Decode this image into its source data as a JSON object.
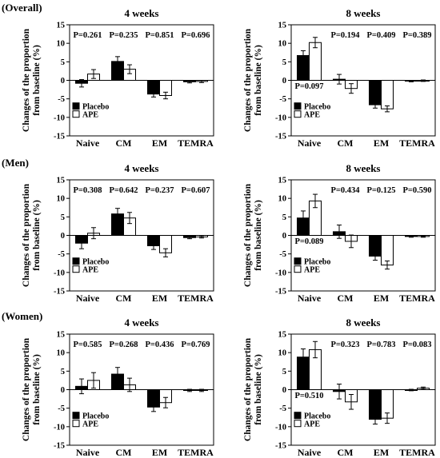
{
  "figure": {
    "legend": {
      "placebo": "Placebo",
      "ape": "APE"
    },
    "colors": {
      "placebo": "#000000",
      "ape": "#ffffff",
      "stroke": "#000000"
    }
  },
  "chart_data": [
    {
      "type": "bar",
      "group": "(Overall)",
      "title": "4 weeks",
      "ylabel": "Changes of the proportion from baseline (%)",
      "ylim": [
        -15,
        15
      ],
      "yticks": [
        -15,
        -10,
        -5,
        0,
        5,
        10,
        15
      ],
      "categories": [
        "Naive",
        "CM",
        "EM",
        "TEMRA"
      ],
      "p_values": [
        "P=0.261",
        "P=0.235",
        "P=0.851",
        "P=0.696"
      ],
      "series": [
        {
          "name": "Placebo",
          "values": [
            -0.8,
            5.1,
            -3.7,
            -0.4
          ],
          "errors": [
            1.0,
            1.3,
            0.8,
            0.3
          ]
        },
        {
          "name": "APE",
          "values": [
            1.7,
            3.0,
            -4.1,
            -0.3
          ],
          "errors": [
            1.2,
            1.2,
            0.9,
            0.3
          ]
        }
      ]
    },
    {
      "type": "bar",
      "group": "(Overall)",
      "title": "8 weeks",
      "ylabel": "Changes of the proportion from baseline (%)",
      "ylim": [
        -15,
        15
      ],
      "yticks": [
        -15,
        -10,
        -5,
        0,
        5,
        10,
        15
      ],
      "categories": [
        "Naive",
        "CM",
        "EM",
        "TEMRA"
      ],
      "p_values": [
        "P=0.097",
        "P=0.194",
        "P=0.409",
        "P=0.389"
      ],
      "series": [
        {
          "name": "Placebo",
          "values": [
            6.7,
            0.3,
            -6.6,
            -0.2
          ],
          "errors": [
            1.3,
            1.3,
            0.9,
            0.2
          ]
        },
        {
          "name": "APE",
          "values": [
            10.2,
            -2.2,
            -7.7,
            -0.1
          ],
          "errors": [
            1.4,
            1.3,
            0.8,
            0.2
          ]
        }
      ]
    },
    {
      "type": "bar",
      "group": "(Men)",
      "title": "4 weeks",
      "ylabel": "Changes of the proportion from baseline (%)",
      "ylim": [
        -15,
        15
      ],
      "yticks": [
        -15,
        -10,
        -5,
        0,
        5,
        10,
        15
      ],
      "categories": [
        "Naive",
        "CM",
        "EM",
        "TEMRA"
      ],
      "p_values": [
        "P=0.308",
        "P=0.642",
        "P=0.237",
        "P=0.607"
      ],
      "series": [
        {
          "name": "Placebo",
          "values": [
            -2.1,
            5.8,
            -2.8,
            -0.6
          ],
          "errors": [
            1.5,
            1.5,
            1.0,
            0.3
          ]
        },
        {
          "name": "APE",
          "values": [
            0.6,
            4.7,
            -4.7,
            -0.4
          ],
          "errors": [
            1.5,
            1.5,
            1.1,
            0.3
          ]
        }
      ]
    },
    {
      "type": "bar",
      "group": "(Men)",
      "title": "8 weeks",
      "ylabel": "Changes of the proportion from baseline (%)",
      "ylim": [
        -15,
        15
      ],
      "yticks": [
        -15,
        -10,
        -5,
        0,
        5,
        10,
        15
      ],
      "categories": [
        "Naive",
        "CM",
        "EM",
        "TEMRA"
      ],
      "p_values": [
        "P=0.089",
        "P=0.434",
        "P=0.125",
        "P=0.590"
      ],
      "series": [
        {
          "name": "Placebo",
          "values": [
            4.7,
            1.0,
            -5.6,
            -0.3
          ],
          "errors": [
            1.9,
            1.8,
            1.1,
            0.2
          ]
        },
        {
          "name": "APE",
          "values": [
            9.3,
            -1.6,
            -8.0,
            -0.3
          ],
          "errors": [
            1.8,
            1.7,
            1.1,
            0.2
          ]
        }
      ]
    },
    {
      "type": "bar",
      "group": "(Women)",
      "title": "4 weeks",
      "ylabel": "Changes of the proportion from baseline (%)",
      "ylim": [
        -15,
        15
      ],
      "yticks": [
        -15,
        -10,
        -5,
        0,
        5,
        10,
        15
      ],
      "categories": [
        "Naive",
        "CM",
        "EM",
        "TEMRA"
      ],
      "p_values": [
        "P=0.585",
        "P=0.268",
        "P=0.436",
        "P=0.769"
      ],
      "series": [
        {
          "name": "Placebo",
          "values": [
            0.9,
            4.2,
            -4.7,
            -0.2
          ],
          "errors": [
            2.0,
            1.8,
            1.2,
            0.3
          ]
        },
        {
          "name": "APE",
          "values": [
            2.5,
            1.3,
            -3.5,
            -0.2
          ],
          "errors": [
            2.1,
            1.8,
            1.4,
            0.3
          ]
        }
      ]
    },
    {
      "type": "bar",
      "group": "(Women)",
      "title": "8 weeks",
      "ylabel": "Changes of the proportion from baseline (%)",
      "ylim": [
        -15,
        15
      ],
      "yticks": [
        -15,
        -10,
        -5,
        0,
        5,
        10,
        15
      ],
      "categories": [
        "Naive",
        "CM",
        "EM",
        "TEMRA"
      ],
      "p_values": [
        "P=0.510",
        "P=0.323",
        "P=0.783",
        "P=0.083"
      ],
      "series": [
        {
          "name": "Placebo",
          "values": [
            8.8,
            -0.5,
            -8.0,
            -0.1
          ],
          "errors": [
            2.2,
            2.0,
            1.3,
            0.2
          ]
        },
        {
          "name": "APE",
          "values": [
            10.8,
            -3.3,
            -7.7,
            0.4
          ],
          "errors": [
            2.2,
            2.0,
            1.4,
            0.3
          ]
        }
      ]
    }
  ]
}
